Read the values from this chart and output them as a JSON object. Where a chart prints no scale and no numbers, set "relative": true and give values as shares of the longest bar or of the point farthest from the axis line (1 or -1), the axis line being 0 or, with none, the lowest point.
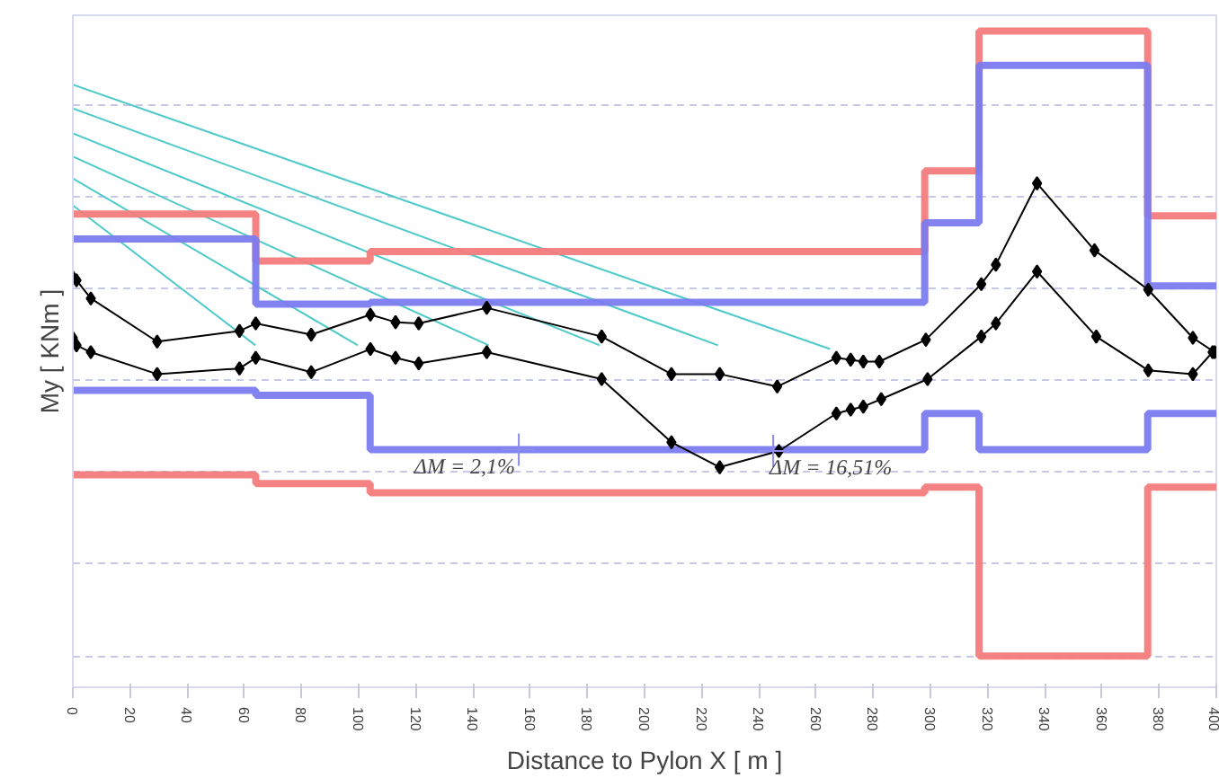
{
  "chart_data": {
    "type": "line",
    "relative": true,
    "xlabel": "Distance to Pylon X [ m ]",
    "ylabel": "My [ KNm ]",
    "xlim": [
      0,
      400
    ],
    "xticks": [
      0,
      20,
      40,
      60,
      80,
      100,
      120,
      140,
      160,
      180,
      200,
      220,
      240,
      260,
      280,
      300,
      320,
      340,
      360,
      380,
      400
    ],
    "grid": "y",
    "tick_labels": "x",
    "series": [
      {
        "color": "#4fc9c9",
        "marker": "none",
        "x": [
          0,
          264.9
        ],
        "values": [
          0.914,
          0.491
        ]
      },
      {
        "color": "#4fc9c9",
        "marker": "none",
        "x": [
          0,
          225.7
        ],
        "values": [
          0.876,
          0.497
        ]
      },
      {
        "color": "#4fc9c9",
        "marker": "none",
        "x": [
          0,
          184.3
        ],
        "values": [
          0.836,
          0.497
        ]
      },
      {
        "color": "#4fc9c9",
        "marker": "none",
        "x": [
          0,
          145.5
        ],
        "values": [
          0.799,
          0.497
        ]
      },
      {
        "color": "#4fc9c9",
        "marker": "none",
        "x": [
          0,
          99.7
        ],
        "values": [
          0.764,
          0.497
        ]
      },
      {
        "color": "#4fc9c9",
        "marker": "none",
        "x": [
          0,
          63.9
        ],
        "values": [
          0.721,
          0.497
        ]
      },
      {
        "type": "step",
        "color": "#f47c7c",
        "marker": "none",
        "x": [
          0,
          64,
          104,
          298,
          317,
          376,
          400
        ],
        "values": [
          0.707,
          0.632,
          0.647,
          0.776,
          1.0,
          0.704,
          0.704
        ]
      },
      {
        "type": "step",
        "color": "#7b7bf0",
        "marker": "none",
        "x": [
          0,
          64,
          104,
          298,
          317,
          376,
          400
        ],
        "values": [
          0.667,
          0.563,
          0.566,
          0.693,
          0.945,
          0.592,
          0.592
        ]
      },
      {
        "type": "step",
        "color": "#7b7bf0",
        "marker": "none",
        "x": [
          0,
          64,
          104,
          298,
          317,
          376,
          400
        ],
        "values": [
          0.425,
          0.417,
          0.33,
          0.388,
          0.33,
          0.388,
          0.388
        ]
      },
      {
        "type": "step",
        "color": "#f47c7c",
        "marker": "none",
        "x": [
          0,
          64,
          104,
          298,
          317,
          376,
          400
        ],
        "values": [
          0.29,
          0.276,
          0.261,
          0.27,
          0,
          0.27,
          0.27
        ]
      },
      {
        "color": "#000000",
        "marker": "diamond",
        "x": [
          0,
          1.3,
          6.3,
          29.5,
          58.3,
          64,
          83.4,
          104.1,
          112.9,
          121,
          144.8,
          185,
          209.4,
          226.3,
          246.4,
          267.1,
          272.1,
          276.5,
          282.1,
          298.4,
          317.8,
          322.9,
          337.3,
          357.4,
          376.2,
          391.8,
          399.4
        ],
        "values": [
          0.606,
          0.601,
          0.572,
          0.503,
          0.52,
          0.532,
          0.514,
          0.546,
          0.534,
          0.532,
          0.557,
          0.511,
          0.451,
          0.451,
          0.431,
          0.477,
          0.474,
          0.471,
          0.471,
          0.506,
          0.595,
          0.626,
          0.756,
          0.649,
          0.586,
          0.509,
          0.486
        ]
      },
      {
        "color": "#000000",
        "marker": "diamond",
        "x": [
          0,
          1.3,
          6.3,
          29.5,
          58.3,
          64,
          83.4,
          104.1,
          112.9,
          121,
          144.8,
          185,
          209.4,
          226.3,
          247,
          267.1,
          272.1,
          276.5,
          282.8,
          299,
          317.8,
          322.9,
          337.3,
          358,
          376.2,
          391.8,
          398.7
        ],
        "values": [
          0.509,
          0.497,
          0.486,
          0.451,
          0.46,
          0.477,
          0.454,
          0.491,
          0.477,
          0.468,
          0.486,
          0.443,
          0.342,
          0.302,
          0.328,
          0.388,
          0.394,
          0.399,
          0.411,
          0.443,
          0.511,
          0.532,
          0.615,
          0.511,
          0.457,
          0.451,
          0.486
        ]
      }
    ],
    "annotations": [
      {
        "text": "ΔM = 2,1%",
        "x": 156,
        "y": 0.33
      },
      {
        "text": "ΔM = 16,51%",
        "x": 245,
        "y": 0.328
      }
    ]
  }
}
